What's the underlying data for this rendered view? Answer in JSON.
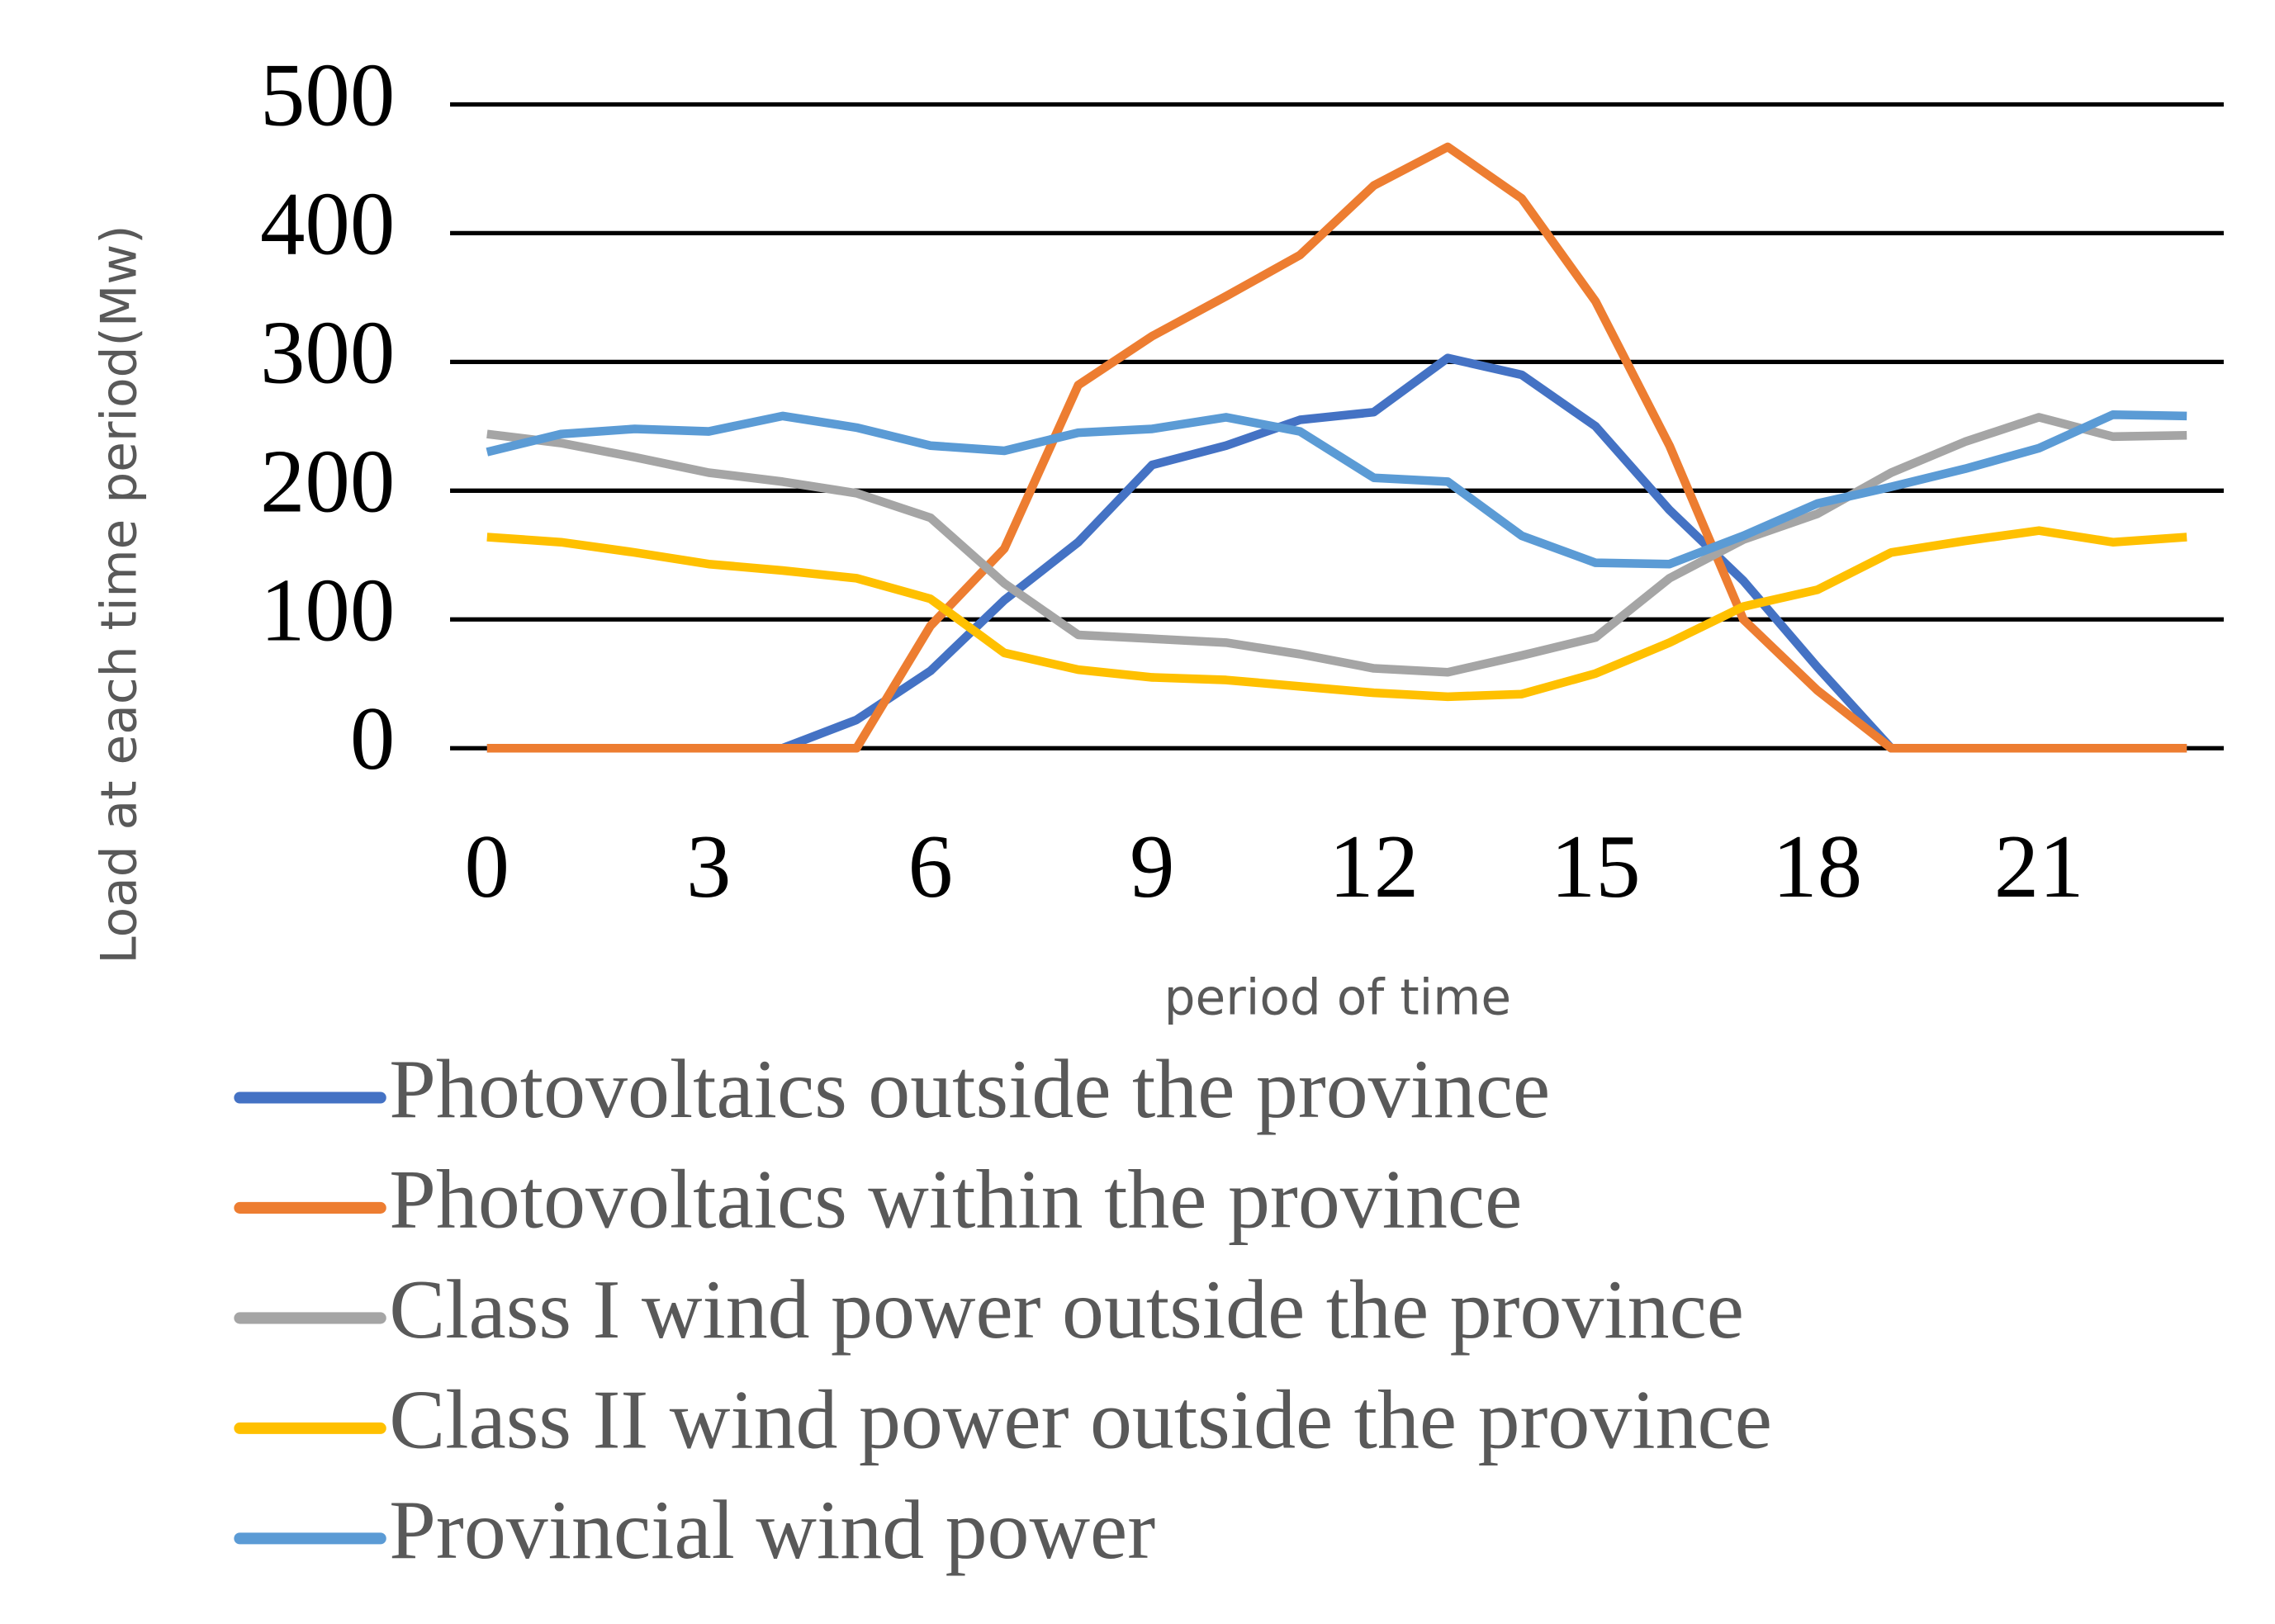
{
  "chart_data": {
    "type": "line",
    "x_label": "period of time",
    "y_label": "Load at each time period(Mw)",
    "x": [
      0,
      1,
      2,
      3,
      4,
      5,
      6,
      7,
      8,
      9,
      10,
      11,
      12,
      13,
      14,
      15,
      16,
      17,
      18,
      19,
      20,
      21,
      22,
      23
    ],
    "xlim": [
      -0.5,
      23.5
    ],
    "xticks": [
      0,
      3,
      6,
      9,
      12,
      15,
      18,
      21
    ],
    "ylim": [
      0,
      500
    ],
    "yticks": [
      0,
      100,
      200,
      300,
      400,
      500
    ],
    "grid": true,
    "series": [
      {
        "name": "Photovoltaics outside the province",
        "color": "#4472c4",
        "values": [
          0,
          0,
          0,
          0,
          0,
          22,
          60,
          115,
          160,
          220,
          235,
          255,
          261,
          303,
          290,
          250,
          185,
          130,
          63,
          0,
          0,
          0,
          0,
          0
        ]
      },
      {
        "name": "Photovoltaics within the province",
        "color": "#ed7d31",
        "values": [
          0,
          0,
          0,
          0,
          0,
          0,
          95,
          155,
          282,
          320,
          351,
          383,
          437,
          467,
          427,
          347,
          235,
          100,
          45,
          0,
          0,
          0,
          0,
          0
        ]
      },
      {
        "name": "Class I wind power outside the province",
        "color": "#a5a5a5",
        "values": [
          244,
          237,
          226,
          214,
          207,
          198,
          179,
          128,
          88,
          85,
          82,
          73,
          62,
          59,
          72,
          86,
          132,
          162,
          182,
          214,
          238,
          257,
          242,
          243
        ]
      },
      {
        "name": "Class II wind power outside the province",
        "color": "#ffc000",
        "values": [
          164,
          160,
          152,
          143,
          138,
          132,
          116,
          74,
          61,
          55,
          53,
          48,
          43,
          40,
          42,
          58,
          82,
          110,
          123,
          152,
          161,
          169,
          160,
          164
        ]
      },
      {
        "name": "Provincial wind power",
        "color": "#5b9bd5",
        "values": [
          230,
          244,
          248,
          246,
          258,
          249,
          235,
          231,
          245,
          248,
          257,
          246,
          210,
          207,
          165,
          144,
          143,
          165,
          190,
          203,
          217,
          233,
          259,
          258
        ]
      }
    ]
  }
}
